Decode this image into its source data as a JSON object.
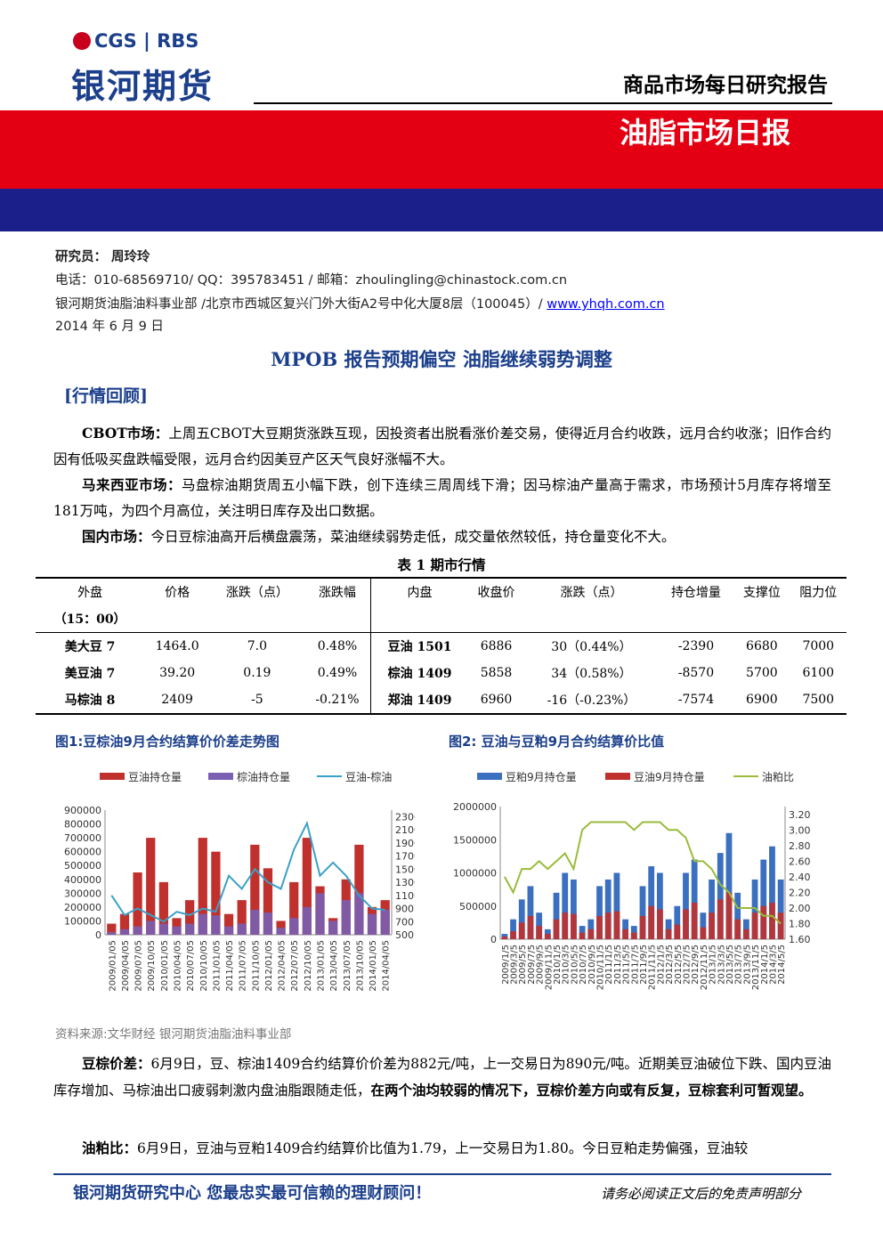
{
  "header": {
    "logo_en": "CGS | RBS",
    "logo_cn": "银河期货",
    "report_series": "商品市场每日研究报告",
    "report_title": "油脂市场日报"
  },
  "meta": {
    "analyst": "研究员：  周玲玲",
    "contact": "电话：010-68569710/ QQ：395783451 / 邮箱：zhoulingling@chinastock.com.cn",
    "dept": "银河期货油脂油料事业部 /北京市西城区复兴门外大街A2号中化大厦8层（100045）/ ",
    "website": "www.yhqh.com.cn",
    "date": "2014 年 6 月 9 日"
  },
  "headline": "MPOB 报告预期偏空  油脂继续弱势调整",
  "section_title": "[行情回顾]",
  "paragraphs": {
    "cbot_label": "CBOT市场：",
    "cbot_text": "上周五CBOT大豆期货涨跌互现，因投资者出脱看涨价差交易，使得近月合约收跌，远月合约收涨；旧作合约因有低吸买盘跌幅受限，远月合约因美豆产区天气良好涨幅不大。",
    "malaysia_label": "马来西亚市场：",
    "malaysia_text": "马盘棕油期货周五小幅下跌，创下连续三周周线下滑；因马棕油产量高于需求，市场预计5月库存将增至181万吨，为四个月高位，关注明日库存及出口数据。",
    "domestic_label": "国内市场：",
    "domestic_text": "今日豆棕油高开后横盘震荡，菜油继续弱势走低，成交量依然较低，持仓量变化不大。",
    "spread_label": "豆棕价差：",
    "spread_text": "6月9日，豆、棕油1409合约结算价价差为882元/吨，上一交易日为890元/吨。近期美豆油破位下跌、国内豆油库存增加、马棕油出口疲弱刺激内盘油脂跟随走低，",
    "spread_bold": "在两个油均较弱的情况下，豆棕价差方向或有反复，豆棕套利可暂观望。",
    "ratio_label": "油粕比：",
    "ratio_text": "6月9日，豆油与豆粕1409合约结算价比值为1.79，上一交易日为1.80。今日豆粕走势偏强，豆油较"
  },
  "table": {
    "caption": "表 1   期市行情",
    "headers": [
      "外盘",
      "价格",
      "涨跌（点）",
      "涨跌幅",
      "内盘",
      "收盘价",
      "涨跌（点）",
      "持仓增量",
      "支撑位",
      "阻力位"
    ],
    "sub_header": "（15：00）",
    "rows": [
      [
        "美大豆 7",
        "1464.0",
        "7.0",
        "0.48%",
        "豆油 1501",
        "6886",
        "30（0.44%）",
        "-2390",
        "6680",
        "7000"
      ],
      [
        "美豆油 7",
        "39.20",
        "0.19",
        "0.49%",
        "棕油 1409",
        "5858",
        "34（0.58%）",
        "-8570",
        "5700",
        "6100"
      ],
      [
        "马棕油 8",
        "2409",
        "-5",
        "-0.21%",
        "郑油 1409",
        "6960",
        "-16（-0.23%）",
        "-7574",
        "6900",
        "7500"
      ]
    ]
  },
  "chart_data": [
    {
      "type": "bar",
      "title": "图1:豆棕油9月合约结算价价差走势图",
      "legend": [
        "豆油持仓量",
        "棕油持仓量",
        "豆油-棕油"
      ],
      "legend_placement": "top",
      "colors": {
        "soyoil_oi": "#c0312e",
        "palm_oi": "#7a5fb3",
        "spread": "#3aa0c8"
      },
      "y_left_ticks": [
        0,
        100000,
        200000,
        300000,
        400000,
        500000,
        600000,
        700000,
        800000,
        900000
      ],
      "y_right_ticks": [
        500,
        700,
        900,
        1100,
        1300,
        1500,
        1700,
        1900,
        2100,
        2300
      ],
      "ylim_left": [
        0,
        900000
      ],
      "ylim_right": [
        500,
        2400
      ],
      "x_ticks": [
        "2009/01/05",
        "2009/04/05",
        "2009/07/05",
        "2009/10/05",
        "2010/01/05",
        "2010/04/05",
        "2010/07/05",
        "2010/10/05",
        "2011/01/05",
        "2011/04/05",
        "2011/07/05",
        "2011/10/05",
        "2012/01/05",
        "2012/04/05",
        "2012/07/05",
        "2012/10/05",
        "2013/01/05",
        "2013/04/05",
        "2013/07/05",
        "2013/10/05",
        "2014/01/05",
        "2014/04/05"
      ],
      "series": [
        {
          "name": "豆油持仓量",
          "values": [
            80000,
            150000,
            450000,
            700000,
            380000,
            120000,
            250000,
            700000,
            600000,
            150000,
            250000,
            650000,
            480000,
            100000,
            380000,
            700000,
            350000,
            120000,
            400000,
            650000,
            200000,
            250000
          ]
        },
        {
          "name": "棕油持仓量",
          "values": [
            20000,
            40000,
            60000,
            100000,
            80000,
            60000,
            80000,
            150000,
            140000,
            60000,
            80000,
            180000,
            160000,
            50000,
            120000,
            200000,
            300000,
            100000,
            250000,
            300000,
            150000,
            180000
          ]
        },
        {
          "name": "豆油-棕油",
          "values": [
            1100,
            800,
            900,
            800,
            700,
            850,
            800,
            900,
            850,
            1400,
            1200,
            1500,
            1300,
            1200,
            1800,
            2200,
            1400,
            1600,
            1400,
            1100,
            900,
            880
          ]
        }
      ]
    },
    {
      "type": "bar",
      "title": "图2: 豆油与豆粕9月合约结算价比值",
      "legend": [
        "豆粕9月持仓量",
        "豆油9月持仓量",
        "油粕比"
      ],
      "legend_placement": "top",
      "colors": {
        "meal_oi": "#3b6fc0",
        "oil_oi": "#c0312e",
        "ratio": "#9bbb3b"
      },
      "y_left_ticks": [
        0,
        500000,
        1000000,
        1500000,
        2000000
      ],
      "y_right_ticks": [
        1.6,
        1.8,
        2.0,
        2.2,
        2.4,
        2.6,
        2.8,
        3.0,
        3.2
      ],
      "ylim_left": [
        0,
        2000000
      ],
      "ylim_right": [
        1.6,
        3.3
      ],
      "x_ticks": [
        "2009/1/5",
        "2009/3/5",
        "2009/5/5",
        "2009/7/5",
        "2009/9/5",
        "2009/11/5",
        "2010/1/5",
        "2010/3/5",
        "2010/5/5",
        "2010/7/5",
        "2010/9/5",
        "2010/11/5",
        "2011/1/5",
        "2011/3/5",
        "2011/5/5",
        "2011/7/5",
        "2011/9/5",
        "2011/11/5",
        "2012/1/5",
        "2012/3/5",
        "2012/5/5",
        "2012/7/5",
        "2012/9/5",
        "2012/11/5",
        "2013/1/5",
        "2013/3/5",
        "2013/5/5",
        "2013/7/5",
        "2013/9/5",
        "2013/11/5",
        "2014/1/5",
        "2014/3/5",
        "2014/5/5"
      ],
      "series": [
        {
          "name": "豆粕9月持仓量",
          "values": [
            80000,
            300000,
            600000,
            800000,
            400000,
            150000,
            700000,
            1000000,
            900000,
            200000,
            300000,
            800000,
            900000,
            1000000,
            300000,
            200000,
            800000,
            1100000,
            1000000,
            300000,
            500000,
            1000000,
            1200000,
            400000,
            900000,
            1300000,
            1600000,
            700000,
            300000,
            900000,
            1200000,
            1400000,
            900000
          ]
        },
        {
          "name": "豆油9月持仓量",
          "values": [
            40000,
            120000,
            250000,
            350000,
            200000,
            80000,
            300000,
            400000,
            380000,
            100000,
            150000,
            350000,
            400000,
            420000,
            150000,
            100000,
            350000,
            500000,
            450000,
            150000,
            220000,
            450000,
            550000,
            180000,
            400000,
            600000,
            700000,
            300000,
            150000,
            400000,
            500000,
            550000,
            400000
          ]
        },
        {
          "name": "油粕比",
          "values": [
            2.4,
            2.2,
            2.5,
            2.5,
            2.6,
            2.5,
            2.6,
            2.7,
            2.5,
            3.0,
            3.1,
            3.1,
            3.1,
            3.1,
            3.1,
            3.0,
            3.1,
            3.1,
            3.1,
            3.0,
            3.0,
            2.9,
            2.6,
            2.6,
            2.5,
            2.3,
            2.2,
            2.0,
            2.0,
            2.0,
            1.9,
            1.9,
            1.8
          ]
        }
      ]
    }
  ],
  "source": "资料来源:文华财经    银河期货油脂油料事业部",
  "footer": {
    "slogan": "银河期货研究中心   您最忠实最可信赖的理财顾问！",
    "note": "请务必阅读正文后的免责声明部分"
  }
}
